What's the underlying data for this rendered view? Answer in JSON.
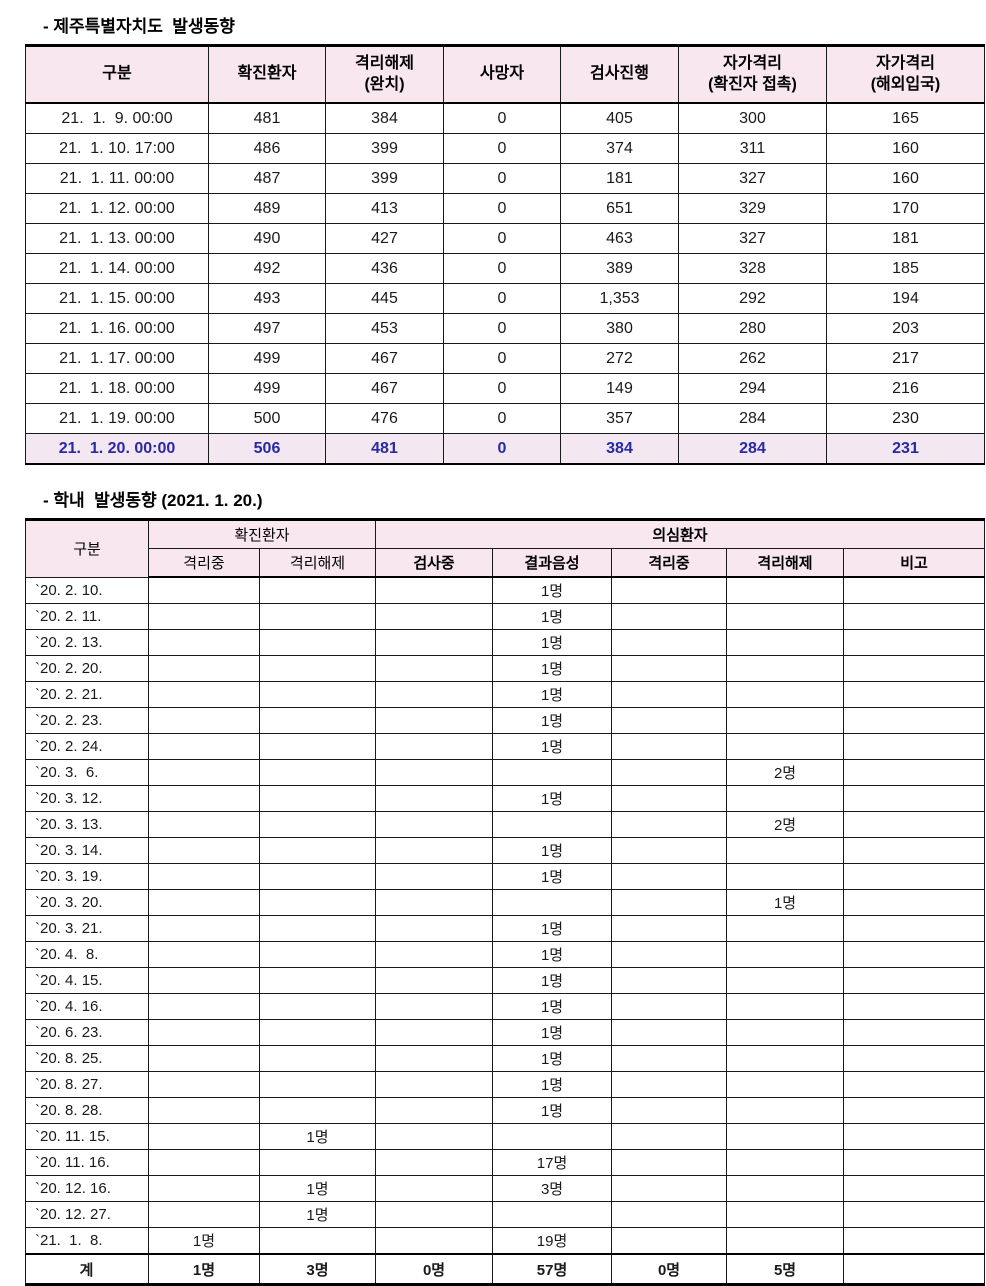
{
  "titles": {
    "section1": "- 제주특별자치도  발생동향",
    "section2": "- 학내  발생동향 (2021. 1. 20.)"
  },
  "colors": {
    "header_bg": "#f8e7ef",
    "highlight_bg": "#f3e7f1",
    "highlight_text": "#2929a3",
    "border": "#1a1a1a"
  },
  "table1": {
    "headers": [
      "구분",
      "확진환자",
      "격리해제\n(완치)",
      "사망자",
      "검사진행",
      "자가격리\n(확진자 접촉)",
      "자가격리\n(해외입국)"
    ],
    "rows": [
      {
        "date": "21.  1.  9. 00:00",
        "values": [
          "481",
          "384",
          "0",
          "405",
          "300",
          "165"
        ],
        "highlight": false
      },
      {
        "date": "21.  1. 10. 17:00",
        "values": [
          "486",
          "399",
          "0",
          "374",
          "311",
          "160"
        ],
        "highlight": false
      },
      {
        "date": "21.  1. 11. 00:00",
        "values": [
          "487",
          "399",
          "0",
          "181",
          "327",
          "160"
        ],
        "highlight": false
      },
      {
        "date": "21.  1. 12. 00:00",
        "values": [
          "489",
          "413",
          "0",
          "651",
          "329",
          "170"
        ],
        "highlight": false
      },
      {
        "date": "21.  1. 13. 00:00",
        "values": [
          "490",
          "427",
          "0",
          "463",
          "327",
          "181"
        ],
        "highlight": false
      },
      {
        "date": "21.  1. 14. 00:00",
        "values": [
          "492",
          "436",
          "0",
          "389",
          "328",
          "185"
        ],
        "highlight": false
      },
      {
        "date": "21.  1. 15. 00:00",
        "values": [
          "493",
          "445",
          "0",
          "1,353",
          "292",
          "194"
        ],
        "highlight": false
      },
      {
        "date": "21.  1. 16. 00:00",
        "values": [
          "497",
          "453",
          "0",
          "380",
          "280",
          "203"
        ],
        "highlight": false
      },
      {
        "date": "21.  1. 17. 00:00",
        "values": [
          "499",
          "467",
          "0",
          "272",
          "262",
          "217"
        ],
        "highlight": false
      },
      {
        "date": "21.  1. 18. 00:00",
        "values": [
          "499",
          "467",
          "0",
          "149",
          "294",
          "216"
        ],
        "highlight": false
      },
      {
        "date": "21.  1. 19. 00:00",
        "values": [
          "500",
          "476",
          "0",
          "357",
          "284",
          "230"
        ],
        "highlight": false
      },
      {
        "date": "21.  1. 20. 00:00",
        "values": [
          "506",
          "481",
          "0",
          "384",
          "284",
          "231"
        ],
        "highlight": true
      }
    ]
  },
  "table2": {
    "col_label": "구분",
    "group1": {
      "label": "확진환자",
      "sub": [
        "격리중",
        "격리해제"
      ]
    },
    "group2": {
      "label": "의심환자",
      "sub": [
        "검사중",
        "결과음성",
        "격리중",
        "격리해제",
        "비고"
      ]
    },
    "rows": [
      {
        "date": "`20. 2. 10.",
        "cells": [
          "",
          "",
          "",
          "1명",
          "",
          "",
          ""
        ]
      },
      {
        "date": "`20. 2. 11.",
        "cells": [
          "",
          "",
          "",
          "1명",
          "",
          "",
          ""
        ]
      },
      {
        "date": "`20. 2. 13.",
        "cells": [
          "",
          "",
          "",
          "1명",
          "",
          "",
          ""
        ]
      },
      {
        "date": "`20. 2. 20.",
        "cells": [
          "",
          "",
          "",
          "1명",
          "",
          "",
          ""
        ]
      },
      {
        "date": "`20. 2. 21.",
        "cells": [
          "",
          "",
          "",
          "1명",
          "",
          "",
          ""
        ]
      },
      {
        "date": "`20. 2. 23.",
        "cells": [
          "",
          "",
          "",
          "1명",
          "",
          "",
          ""
        ]
      },
      {
        "date": "`20. 2. 24.",
        "cells": [
          "",
          "",
          "",
          "1명",
          "",
          "",
          ""
        ]
      },
      {
        "date": "`20. 3.  6.",
        "cells": [
          "",
          "",
          "",
          "",
          "",
          "2명",
          ""
        ]
      },
      {
        "date": "`20. 3. 12.",
        "cells": [
          "",
          "",
          "",
          "1명",
          "",
          "",
          ""
        ]
      },
      {
        "date": "`20. 3. 13.",
        "cells": [
          "",
          "",
          "",
          "",
          "",
          "2명",
          ""
        ]
      },
      {
        "date": "`20. 3. 14.",
        "cells": [
          "",
          "",
          "",
          "1명",
          "",
          "",
          ""
        ]
      },
      {
        "date": "`20. 3. 19.",
        "cells": [
          "",
          "",
          "",
          "1명",
          "",
          "",
          ""
        ]
      },
      {
        "date": "`20. 3. 20.",
        "cells": [
          "",
          "",
          "",
          "",
          "",
          "1명",
          ""
        ]
      },
      {
        "date": "`20. 3. 21.",
        "cells": [
          "",
          "",
          "",
          "1명",
          "",
          "",
          ""
        ]
      },
      {
        "date": "`20. 4.  8.",
        "cells": [
          "",
          "",
          "",
          "1명",
          "",
          "",
          ""
        ]
      },
      {
        "date": "`20. 4. 15.",
        "cells": [
          "",
          "",
          "",
          "1명",
          "",
          "",
          ""
        ]
      },
      {
        "date": "`20. 4. 16.",
        "cells": [
          "",
          "",
          "",
          "1명",
          "",
          "",
          ""
        ]
      },
      {
        "date": "`20. 6. 23.",
        "cells": [
          "",
          "",
          "",
          "1명",
          "",
          "",
          ""
        ]
      },
      {
        "date": "`20. 8. 25.",
        "cells": [
          "",
          "",
          "",
          "1명",
          "",
          "",
          ""
        ]
      },
      {
        "date": "`20. 8. 27.",
        "cells": [
          "",
          "",
          "",
          "1명",
          "",
          "",
          ""
        ]
      },
      {
        "date": "`20. 8. 28.",
        "cells": [
          "",
          "",
          "",
          "1명",
          "",
          "",
          ""
        ]
      },
      {
        "date": "`20. 11. 15.",
        "cells": [
          "",
          "1명",
          "",
          "",
          "",
          "",
          ""
        ]
      },
      {
        "date": "`20. 11. 16.",
        "cells": [
          "",
          "",
          "",
          "17명",
          "",
          "",
          ""
        ]
      },
      {
        "date": "`20. 12. 16.",
        "cells": [
          "",
          "1명",
          "",
          "3명",
          "",
          "",
          ""
        ]
      },
      {
        "date": "`20. 12. 27.",
        "cells": [
          "",
          "1명",
          "",
          "",
          "",
          "",
          ""
        ]
      },
      {
        "date": "`21.  1.  8.",
        "cells": [
          "1명",
          "",
          "",
          "19명",
          "",
          "",
          ""
        ]
      }
    ],
    "total": {
      "label": "계",
      "cells": [
        "1명",
        "3명",
        "0명",
        "57명",
        "0명",
        "5명",
        ""
      ]
    }
  }
}
